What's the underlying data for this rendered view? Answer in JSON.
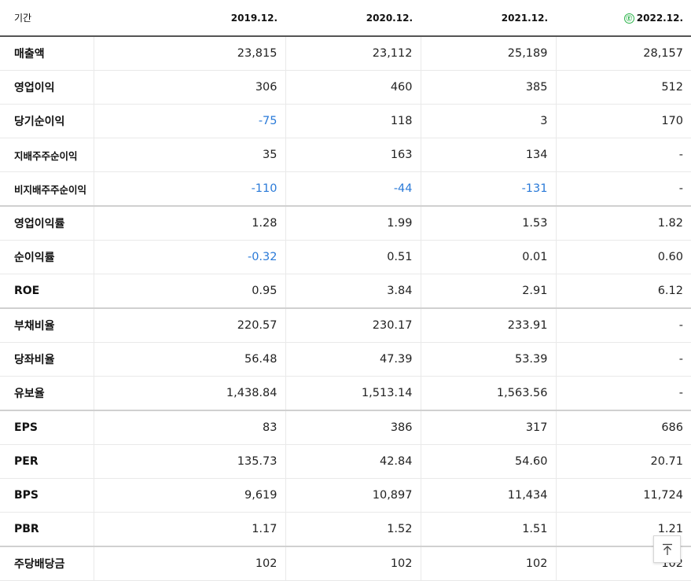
{
  "header": {
    "period_label": "기간",
    "estimate_icon": "Ⓔ",
    "columns": [
      "2019.12.",
      "2020.12.",
      "2021.12.",
      "2022.12."
    ]
  },
  "rows": [
    {
      "label": "매출액",
      "values": [
        "23,815",
        "23,112",
        "25,189",
        "28,157"
      ]
    },
    {
      "label": "영업이익",
      "values": [
        "306",
        "460",
        "385",
        "512"
      ]
    },
    {
      "label": "당기순이익",
      "values": [
        "-75",
        "118",
        "3",
        "170"
      ]
    },
    {
      "label": "지배주주순이익",
      "values": [
        "35",
        "163",
        "134",
        "-"
      ]
    },
    {
      "label": "비지배주주순이익",
      "values": [
        "-110",
        "-44",
        "-131",
        "-"
      ]
    },
    {
      "label": "영업이익률",
      "values": [
        "1.28",
        "1.99",
        "1.53",
        "1.82"
      ]
    },
    {
      "label": "순이익률",
      "values": [
        "-0.32",
        "0.51",
        "0.01",
        "0.60"
      ]
    },
    {
      "label": "ROE",
      "values": [
        "0.95",
        "3.84",
        "2.91",
        "6.12"
      ]
    },
    {
      "label": "부채비율",
      "values": [
        "220.57",
        "230.17",
        "233.91",
        "-"
      ]
    },
    {
      "label": "당좌비율",
      "values": [
        "56.48",
        "47.39",
        "53.39",
        "-"
      ]
    },
    {
      "label": "유보율",
      "values": [
        "1,438.84",
        "1,513.14",
        "1,563.56",
        "-"
      ]
    },
    {
      "label": "EPS",
      "values": [
        "83",
        "386",
        "317",
        "686"
      ]
    },
    {
      "label": "PER",
      "values": [
        "135.73",
        "42.84",
        "54.60",
        "20.71"
      ]
    },
    {
      "label": "BPS",
      "values": [
        "9,619",
        "10,897",
        "11,434",
        "11,724"
      ]
    },
    {
      "label": "PBR",
      "values": [
        "1.17",
        "1.52",
        "1.51",
        "1.21"
      ]
    },
    {
      "label": "주당배당금",
      "values": [
        "102",
        "102",
        "102",
        "102"
      ]
    }
  ],
  "colors": {
    "negative": "#2a7ad8",
    "estimate": "#2bb34a"
  },
  "scroll_top_icon": "arrow-up-to-top"
}
